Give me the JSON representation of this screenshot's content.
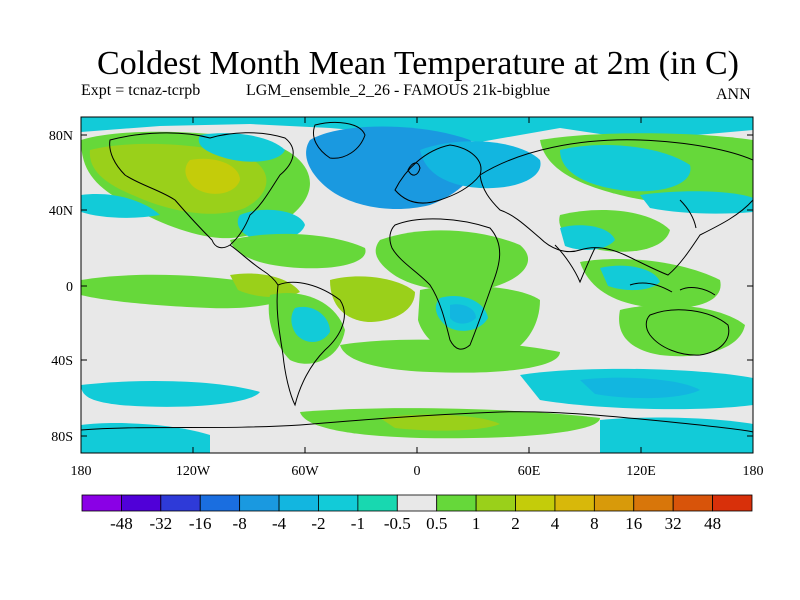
{
  "title": "Coldest Month Mean Temperature at 2m (in C)",
  "experiment": "Expt = tcnaz-tcrpb",
  "run": "LGM_ensemble_2_26 - FAMOUS 21k-bigblue",
  "season": "ANN",
  "map": {
    "background": "#e8e8e8",
    "lat_ticks": [
      "80N",
      "40N",
      "0",
      "40S",
      "80S"
    ],
    "lon_ticks": [
      "180",
      "120W",
      "60W",
      "0",
      "60E",
      "120E",
      "180"
    ]
  },
  "colorbar": {
    "colors": [
      "#8a00e6",
      "#5000d8",
      "#2e3ad8",
      "#1a6ee0",
      "#1a99e0",
      "#12b6e0",
      "#12cbd8",
      "#18d8b0",
      "#e8e8e8",
      "#66d83a",
      "#9ad01a",
      "#c4cc0a",
      "#d8b80a",
      "#d89a0a",
      "#d8760a",
      "#d8540a",
      "#d8300a"
    ],
    "labels": [
      "-48",
      "-32",
      "-16",
      "-8",
      "-4",
      "-2",
      "-1",
      "-0.5",
      "0.5",
      "1",
      "2",
      "4",
      "8",
      "16",
      "32",
      "48"
    ]
  },
  "palette": {
    "cyan_light": "#18d8b0",
    "cyan": "#12cbd8",
    "blue_light": "#12b6e0",
    "blue": "#1a99e0",
    "green": "#66d83a",
    "yellowgreen": "#9ad01a",
    "yellow": "#c4cc0a",
    "coast": "#000000"
  }
}
